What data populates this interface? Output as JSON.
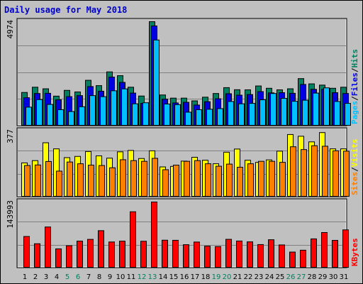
{
  "title": "Daily usage for May 2018",
  "colors": {
    "hits": "#008060",
    "files": "#0000e0",
    "pages": "#00c0ff",
    "visits": "#ffff00",
    "sites": "#ff8000",
    "kbytes": "#ff0000",
    "weekend_day": "#008060",
    "weekday": "#000000",
    "background": "#c0c0c0"
  },
  "chart_data": [
    {
      "type": "bar",
      "panel": "top",
      "max_label": "4974",
      "ylim": [
        0,
        4974
      ],
      "legend_placement": "right-vertical",
      "legend": [
        {
          "text": "Pages",
          "color_key": "pages"
        },
        {
          "text": "Files",
          "color_key": "files"
        },
        {
          "text": "Hits",
          "color_key": "hits"
        }
      ],
      "categories": [
        "1",
        "2",
        "3",
        "4",
        "5",
        "6",
        "7",
        "8",
        "9",
        "10",
        "11",
        "12",
        "13",
        "14",
        "15",
        "16",
        "17",
        "18",
        "19",
        "20",
        "21",
        "22",
        "23",
        "24",
        "25",
        "26",
        "27",
        "28",
        "29",
        "30",
        "31"
      ],
      "series": [
        {
          "name": "Hits",
          "color_key": "hits",
          "values": [
            1600,
            1850,
            1775,
            1425,
            1700,
            1625,
            2180,
            1925,
            2580,
            2400,
            1850,
            1430,
            4974,
            1480,
            1330,
            1330,
            1200,
            1375,
            1550,
            1830,
            1730,
            1725,
            1910,
            1800,
            1725,
            1775,
            2260,
            2010,
            1950,
            1800,
            1850
          ]
        },
        {
          "name": "Files",
          "color_key": "files",
          "values": [
            1350,
            1550,
            1560,
            1250,
            1400,
            1450,
            1880,
            1660,
            2330,
            2080,
            1570,
            1080,
            4770,
            1280,
            1100,
            1130,
            1000,
            1160,
            1300,
            1540,
            1470,
            1500,
            1640,
            1580,
            1590,
            1560,
            1980,
            1750,
            1750,
            1590,
            1550
          ]
        },
        {
          "name": "Pages",
          "color_key": "pages",
          "values": [
            900,
            1260,
            1030,
            780,
            690,
            920,
            1450,
            1400,
            1680,
            1770,
            1060,
            1110,
            4100,
            1050,
            1020,
            660,
            780,
            800,
            830,
            1170,
            1060,
            1080,
            1250,
            1550,
            1320,
            1180,
            1230,
            1570,
            1820,
            1170,
            1080
          ]
        }
      ]
    },
    {
      "type": "bar",
      "panel": "middle",
      "max_label": "377",
      "ylim": [
        0,
        377
      ],
      "legend_placement": "right-vertical",
      "legend": [
        {
          "text": "Sites",
          "color_key": "sites"
        },
        {
          "text": "Visits",
          "color_key": "visits"
        }
      ],
      "categories": [
        "1",
        "2",
        "3",
        "4",
        "5",
        "6",
        "7",
        "8",
        "9",
        "10",
        "11",
        "12",
        "13",
        "14",
        "15",
        "16",
        "17",
        "18",
        "19",
        "20",
        "21",
        "22",
        "23",
        "24",
        "25",
        "26",
        "27",
        "28",
        "29",
        "30",
        "31"
      ],
      "series": [
        {
          "name": "Visits",
          "color_key": "visits",
          "values": [
            195,
            208,
            310,
            275,
            225,
            232,
            260,
            235,
            222,
            258,
            266,
            220,
            264,
            172,
            175,
            205,
            227,
            210,
            190,
            256,
            274,
            210,
            198,
            212,
            262,
            357,
            347,
            315,
            368,
            275,
            275
          ]
        },
        {
          "name": "Sites",
          "color_key": "sites",
          "values": [
            180,
            183,
            203,
            148,
            200,
            190,
            182,
            180,
            167,
            213,
            208,
            204,
            221,
            156,
            182,
            204,
            208,
            190,
            176,
            188,
            170,
            190,
            204,
            204,
            198,
            287,
            271,
            293,
            290,
            264,
            262
          ]
        }
      ]
    },
    {
      "type": "bar",
      "panel": "bottom",
      "max_label": "143993",
      "ylim": [
        0,
        143993
      ],
      "legend_placement": "right-vertical",
      "legend": [
        {
          "text": "KBytes",
          "color_key": "kbytes"
        }
      ],
      "categories": [
        "1",
        "2",
        "3",
        "4",
        "5",
        "6",
        "7",
        "8",
        "9",
        "10",
        "11",
        "12",
        "13",
        "14",
        "15",
        "16",
        "17",
        "18",
        "19",
        "20",
        "21",
        "22",
        "23",
        "24",
        "25",
        "26",
        "27",
        "28",
        "29",
        "30",
        "31"
      ],
      "series": [
        {
          "name": "KBytes",
          "color_key": "kbytes",
          "values": [
            68800,
            53000,
            89500,
            41800,
            48600,
            58700,
            62500,
            81500,
            56800,
            58600,
            122700,
            58400,
            143993,
            60700,
            60500,
            50900,
            56700,
            47700,
            46800,
            62600,
            58900,
            57100,
            51200,
            61700,
            50400,
            34800,
            38900,
            63600,
            77400,
            60400,
            83200
          ]
        }
      ]
    }
  ],
  "weekend_days": [
    "5",
    "6",
    "12",
    "13",
    "19",
    "20",
    "26",
    "27"
  ]
}
